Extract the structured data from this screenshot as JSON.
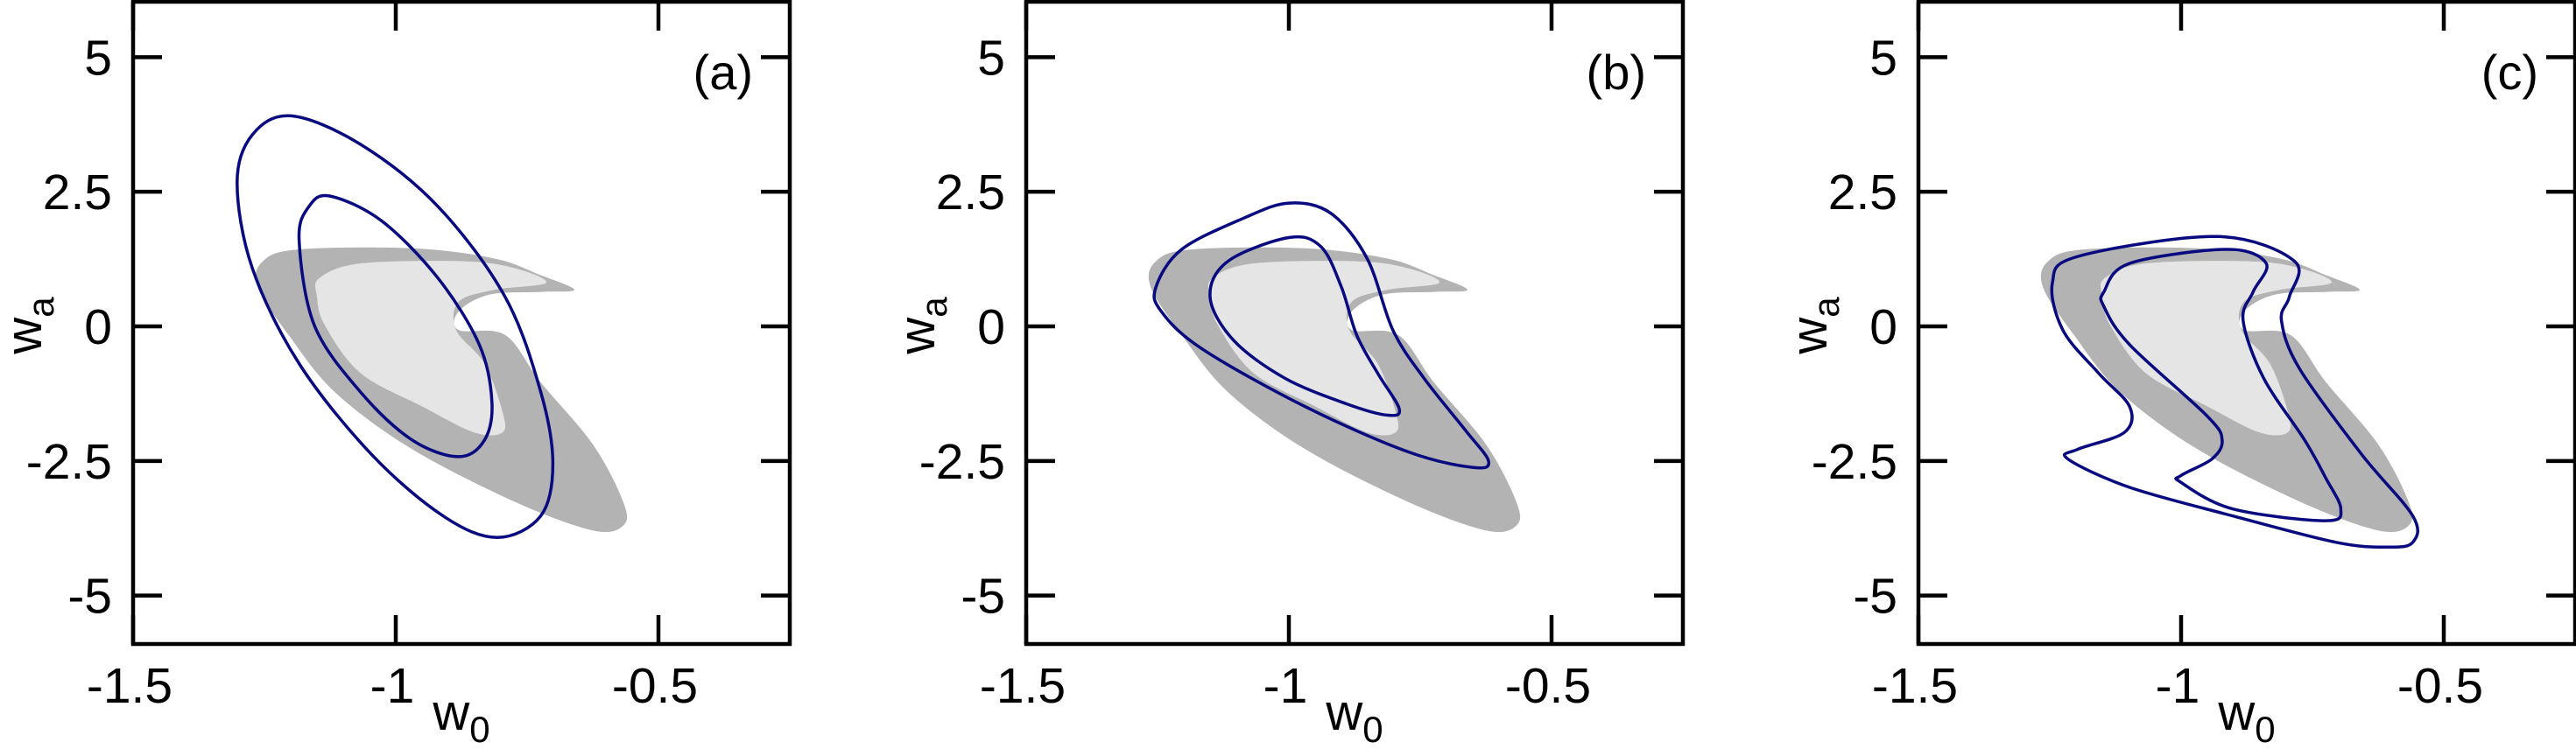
{
  "chart_data": {
    "type": "contour",
    "xlim": [
      -1.5,
      -0.25
    ],
    "ylim": [
      -5.9,
      6.03
    ],
    "xticks": [
      -1.5,
      -1,
      -0.5
    ],
    "xtick_labels": [
      "-1.5",
      "-1",
      "-0.5"
    ],
    "yticks": [
      5,
      2.5,
      0,
      -2.5,
      -5
    ],
    "ytick_labels": [
      "5",
      "2.5",
      "0",
      "-2.5",
      "-5"
    ],
    "xlabel": {
      "base": "w",
      "sub": "0"
    },
    "ylabel": {
      "base": "w",
      "sub": "a"
    },
    "grid": false,
    "colors": {
      "line": "#0a0a80",
      "region_outer": "#b3b3b3",
      "region_inner": "#e5e5e5",
      "frame": "#000000"
    },
    "filled_regions": [
      {
        "color": "#b3b3b3",
        "points": [
          [
            -1.253,
            1.21
          ],
          [
            -1.184,
            1.43
          ],
          [
            -0.969,
            1.45
          ],
          [
            -0.812,
            1.26
          ],
          [
            -0.724,
            0.95
          ],
          [
            -0.66,
            0.68
          ],
          [
            -0.724,
            0.64
          ],
          [
            -0.822,
            0.59
          ],
          [
            -0.88,
            0.28
          ],
          [
            -0.88,
            -0.07
          ],
          [
            -0.792,
            -0.16
          ],
          [
            -0.724,
            -1.04
          ],
          [
            -0.625,
            -2.19
          ],
          [
            -0.567,
            -3.26
          ],
          [
            -0.567,
            -3.7
          ],
          [
            -0.625,
            -3.79
          ],
          [
            -0.773,
            -3.26
          ],
          [
            -0.969,
            -2.28
          ],
          [
            -1.116,
            -1.22
          ],
          [
            -1.204,
            -0.16
          ],
          [
            -1.263,
            0.73
          ]
        ]
      },
      {
        "color": "#e5e5e5",
        "points": [
          [
            -1.145,
            0.9
          ],
          [
            -1.067,
            1.17
          ],
          [
            -0.871,
            1.21
          ],
          [
            -0.773,
            1.08
          ],
          [
            -0.714,
            0.81
          ],
          [
            -0.812,
            0.68
          ],
          [
            -0.88,
            0.46
          ],
          [
            -0.885,
            -0.07
          ],
          [
            -0.831,
            -0.69
          ],
          [
            -0.797,
            -1.58
          ],
          [
            -0.797,
            -1.97
          ],
          [
            -0.851,
            -1.97
          ],
          [
            -0.949,
            -1.49
          ],
          [
            -1.067,
            -0.87
          ],
          [
            -1.135,
            0.02
          ],
          [
            -1.15,
            0.55
          ]
        ]
      }
    ],
    "panels": [
      {
        "label": "(a)",
        "contours": [
          {
            "points": [
              [
                -1.199,
                3.91
              ],
              [
                -1.067,
                3.38
              ],
              [
                -0.92,
                2.23
              ],
              [
                -0.792,
                0.55
              ],
              [
                -0.724,
                -1.22
              ],
              [
                -0.701,
                -2.55
              ],
              [
                -0.724,
                -3.52
              ],
              [
                -0.807,
                -3.92
              ],
              [
                -0.91,
                -3.52
              ],
              [
                -1.047,
                -2.37
              ],
              [
                -1.184,
                -0.69
              ],
              [
                -1.273,
                1.08
              ],
              [
                -1.302,
                2.67
              ],
              [
                -1.273,
                3.56
              ]
            ]
          },
          {
            "points": [
              [
                -1.125,
                2.42
              ],
              [
                -1.027,
                1.96
              ],
              [
                -0.92,
                0.9
              ],
              [
                -0.841,
                -0.34
              ],
              [
                -0.817,
                -1.4
              ],
              [
                -0.831,
                -2.11
              ],
              [
                -0.88,
                -2.42
              ],
              [
                -0.969,
                -2.11
              ],
              [
                -1.067,
                -1.22
              ],
              [
                -1.155,
                0.02
              ],
              [
                -1.184,
                1.61
              ],
              [
                -1.165,
                2.23
              ]
            ]
          }
        ]
      },
      {
        "label": "(b)",
        "contours": [
          {
            "points": [
              [
                -1.253,
                0.73
              ],
              [
                -1.204,
                1.43
              ],
              [
                -1.086,
                2.01
              ],
              [
                -1.0,
                2.29
              ],
              [
                -0.92,
                2.1
              ],
              [
                -0.851,
                1.26
              ],
              [
                -0.802,
                -0.07
              ],
              [
                -0.743,
                -0.96
              ],
              [
                -0.664,
                -1.93
              ],
              [
                -0.62,
                -2.5
              ],
              [
                -0.649,
                -2.62
              ],
              [
                -0.773,
                -2.33
              ],
              [
                -0.969,
                -1.49
              ],
              [
                -1.165,
                -0.42
              ],
              [
                -1.243,
                0.28
              ]
            ]
          },
          {
            "points": [
              [
                -1.15,
                0.55
              ],
              [
                -1.116,
                1.21
              ],
              [
                -1.0,
                1.65
              ],
              [
                -0.939,
                1.48
              ],
              [
                -0.9,
                0.73
              ],
              [
                -0.871,
                -0.16
              ],
              [
                -0.831,
                -0.87
              ],
              [
                -0.79,
                -1.53
              ],
              [
                -0.812,
                -1.65
              ],
              [
                -0.89,
                -1.44
              ],
              [
                -1.008,
                -0.96
              ],
              [
                -1.106,
                -0.25
              ]
            ]
          }
        ]
      },
      {
        "label": "(c)",
        "contours": [
          {
            "points": [
              [
                -1.245,
                0.81
              ],
              [
                -1.196,
                1.3
              ],
              [
                -0.931,
                1.67
              ],
              [
                -0.784,
                1.21
              ],
              [
                -0.794,
                0.55
              ],
              [
                -0.809,
                0.11
              ],
              [
                -0.775,
                -0.78
              ],
              [
                -0.657,
                -2.37
              ],
              [
                -0.559,
                -3.52
              ],
              [
                -0.559,
                -4.01
              ],
              [
                -0.608,
                -4.1
              ],
              [
                -0.706,
                -4.01
              ],
              [
                -0.902,
                -3.52
              ],
              [
                -1.098,
                -2.99
              ],
              [
                -1.216,
                -2.46
              ],
              [
                -1.196,
                -2.28
              ],
              [
                -1.108,
                -1.97
              ],
              [
                -1.098,
                -1.49
              ],
              [
                -1.157,
                -0.87
              ],
              [
                -1.225,
                -0.07
              ]
            ]
          },
          {
            "points": [
              [
                -1.147,
                0.64
              ],
              [
                -1.098,
                1.17
              ],
              [
                -0.912,
                1.43
              ],
              [
                -0.838,
                1.17
              ],
              [
                -0.863,
                0.64
              ],
              [
                -0.882,
                0.11
              ],
              [
                -0.843,
                -0.96
              ],
              [
                -0.765,
                -2.11
              ],
              [
                -0.725,
                -2.81
              ],
              [
                -0.696,
                -3.39
              ],
              [
                -0.725,
                -3.61
              ],
              [
                -0.902,
                -3.39
              ],
              [
                -1.0,
                -2.9
              ],
              [
                -1.0,
                -2.77
              ],
              [
                -0.941,
                -2.46
              ],
              [
                -0.922,
                -2.11
              ],
              [
                -0.951,
                -1.66
              ],
              [
                -1.098,
                -0.34
              ],
              [
                -1.147,
                0.37
              ]
            ]
          }
        ]
      }
    ]
  }
}
